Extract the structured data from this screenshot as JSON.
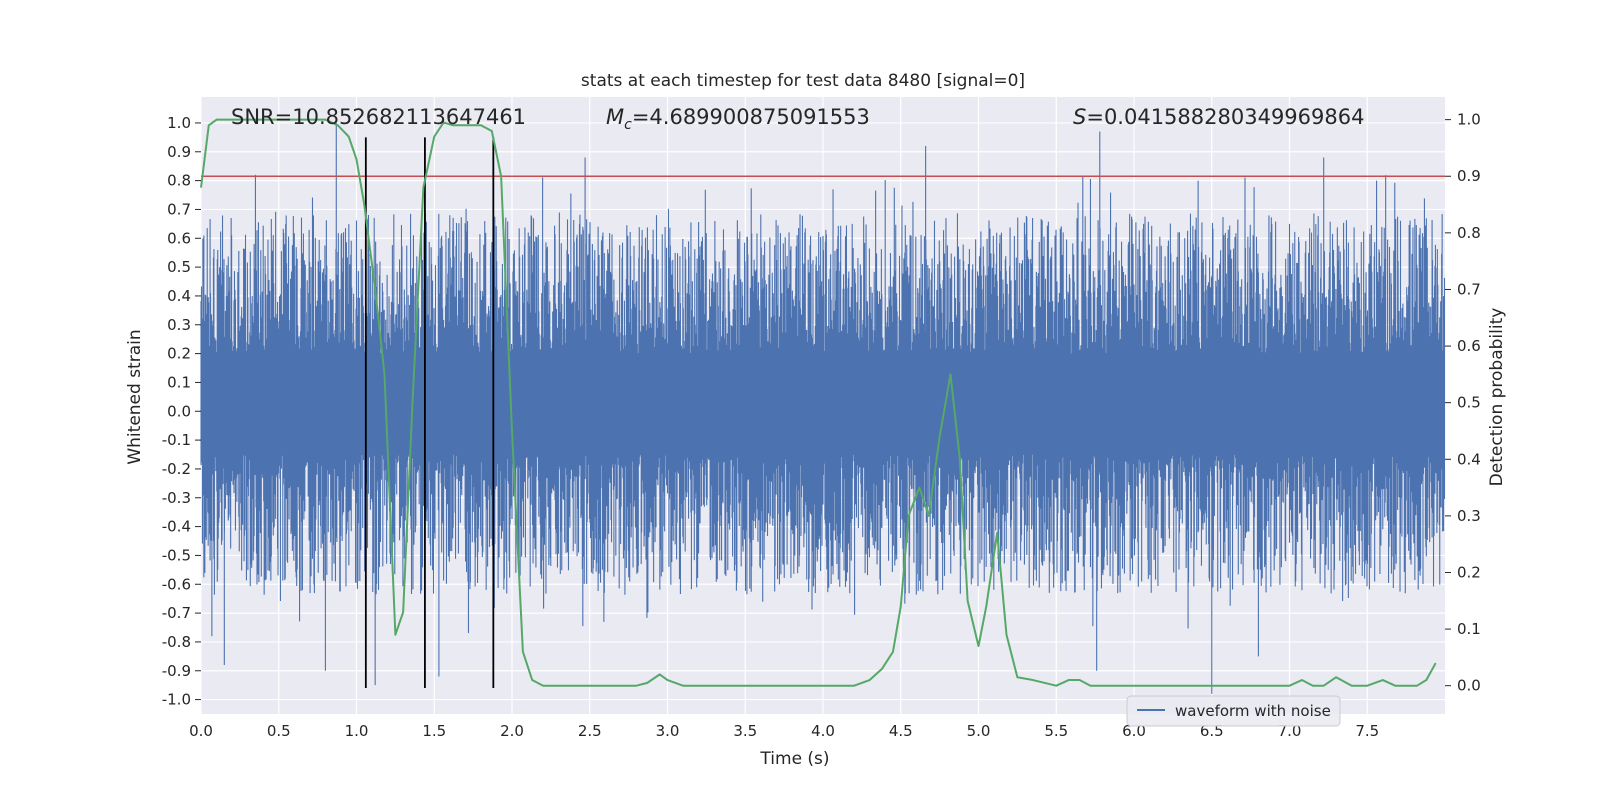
{
  "chart_data": {
    "type": "line",
    "title": "stats at each timestep for test data 8480 [signal=0]",
    "xlabel": "Time (s)",
    "ylabel_left": "Whitened strain",
    "ylabel_right": "Detection probability",
    "xlim": [
      0.0,
      8.0
    ],
    "ylim_left": [
      -1.05,
      1.09
    ],
    "ylim_right": [
      -0.05,
      1.04
    ],
    "grid": true,
    "xticks": [
      "0.0",
      "0.5",
      "1.0",
      "1.5",
      "2.0",
      "2.5",
      "3.0",
      "3.5",
      "4.0",
      "4.5",
      "5.0",
      "5.5",
      "6.0",
      "6.5",
      "7.0",
      "7.5"
    ],
    "yticks_left": [
      "1.0",
      "0.9",
      "0.8",
      "0.7",
      "0.6",
      "0.5",
      "0.4",
      "0.3",
      "0.2",
      "0.1",
      "0.0",
      "-0.1",
      "-0.2",
      "-0.3",
      "-0.4",
      "-0.5",
      "-0.6",
      "-0.7",
      "-0.8",
      "-0.9",
      "-1.0"
    ],
    "yticks_right": [
      "1.0",
      "0.9",
      "0.8",
      "0.7",
      "0.6",
      "0.5",
      "0.4",
      "0.3",
      "0.2",
      "0.1",
      "0.0"
    ],
    "annotations": {
      "snr": "SNR=10.852682113647461",
      "mc_symbol": "M",
      "mc_sub": "c",
      "mc_value": "=4.689900875091553",
      "s_symbol": "S",
      "s_value": "=0.041588280349969864"
    },
    "legend": {
      "label": "waveform with noise",
      "placement": "lower-right"
    },
    "waveform": {
      "name": "waveform with noise",
      "color": "#4c72b0",
      "t_start": 0.0,
      "t_end": 8.0,
      "core_band": [
        -0.15,
        0.2
      ],
      "envelope_typical": [
        -0.55,
        0.6
      ],
      "peak_spikes": [
        {
          "t": 0.87,
          "v": 1.0
        },
        {
          "t": 0.35,
          "v": 0.82
        },
        {
          "t": 2.47,
          "v": 0.88
        },
        {
          "t": 4.66,
          "v": 0.92
        },
        {
          "t": 5.78,
          "v": 0.97
        },
        {
          "t": 7.22,
          "v": 0.88
        },
        {
          "t": 7.56,
          "v": 0.8
        },
        {
          "t": 0.07,
          "v": -0.78
        },
        {
          "t": 0.15,
          "v": -0.88
        },
        {
          "t": 0.8,
          "v": -0.9
        },
        {
          "t": 1.12,
          "v": -0.95
        },
        {
          "t": 1.53,
          "v": -0.92
        },
        {
          "t": 5.76,
          "v": -0.9
        },
        {
          "t": 6.5,
          "v": -0.98
        },
        {
          "t": 6.8,
          "v": -0.85
        }
      ]
    },
    "detection_probability": {
      "color": "#55a868",
      "x": [
        0.0,
        0.05,
        0.1,
        0.2,
        0.4,
        0.6,
        0.8,
        0.88,
        0.95,
        1.0,
        1.05,
        1.12,
        1.18,
        1.25,
        1.3,
        1.36,
        1.43,
        1.5,
        1.56,
        1.62,
        1.7,
        1.8,
        1.87,
        1.93,
        2.0,
        2.07,
        2.13,
        2.2,
        2.4,
        2.6,
        2.8,
        2.87,
        2.95,
        3.0,
        3.1,
        3.2,
        3.4,
        3.6,
        3.8,
        4.0,
        4.2,
        4.3,
        4.38,
        4.45,
        4.5,
        4.55,
        4.62,
        4.68,
        4.75,
        4.82,
        4.88,
        4.93,
        5.0,
        5.05,
        5.12,
        5.18,
        5.25,
        5.35,
        5.5,
        5.58,
        5.65,
        5.72,
        5.8,
        6.0,
        6.2,
        6.5,
        6.8,
        7.0,
        7.08,
        7.15,
        7.22,
        7.3,
        7.4,
        7.5,
        7.6,
        7.68,
        7.75,
        7.82,
        7.88,
        7.94
      ],
      "y": [
        0.88,
        0.99,
        1.0,
        1.0,
        1.0,
        1.0,
        1.0,
        0.99,
        0.97,
        0.93,
        0.85,
        0.7,
        0.55,
        0.09,
        0.13,
        0.5,
        0.88,
        0.97,
        0.995,
        0.99,
        0.99,
        0.99,
        0.98,
        0.9,
        0.45,
        0.06,
        0.01,
        0.0,
        0.0,
        0.0,
        0.0,
        0.005,
        0.02,
        0.01,
        0.0,
        0.0,
        0.0,
        0.0,
        0.0,
        0.0,
        0.0,
        0.01,
        0.03,
        0.06,
        0.14,
        0.3,
        0.35,
        0.3,
        0.44,
        0.55,
        0.4,
        0.15,
        0.07,
        0.14,
        0.27,
        0.09,
        0.015,
        0.01,
        0.0,
        0.01,
        0.01,
        0.0,
        0.0,
        0.0,
        0.0,
        0.0,
        0.0,
        0.0,
        0.01,
        0.0,
        0.0,
        0.015,
        0.0,
        0.0,
        0.01,
        0.0,
        0.0,
        0.0,
        0.01,
        0.04
      ]
    },
    "threshold": {
      "y_right": 0.9,
      "color": "#c44e52"
    },
    "vlines": {
      "x": [
        1.06,
        1.44,
        1.88
      ],
      "y_range_left": [
        -0.96,
        0.95
      ],
      "color": "#000000"
    }
  }
}
